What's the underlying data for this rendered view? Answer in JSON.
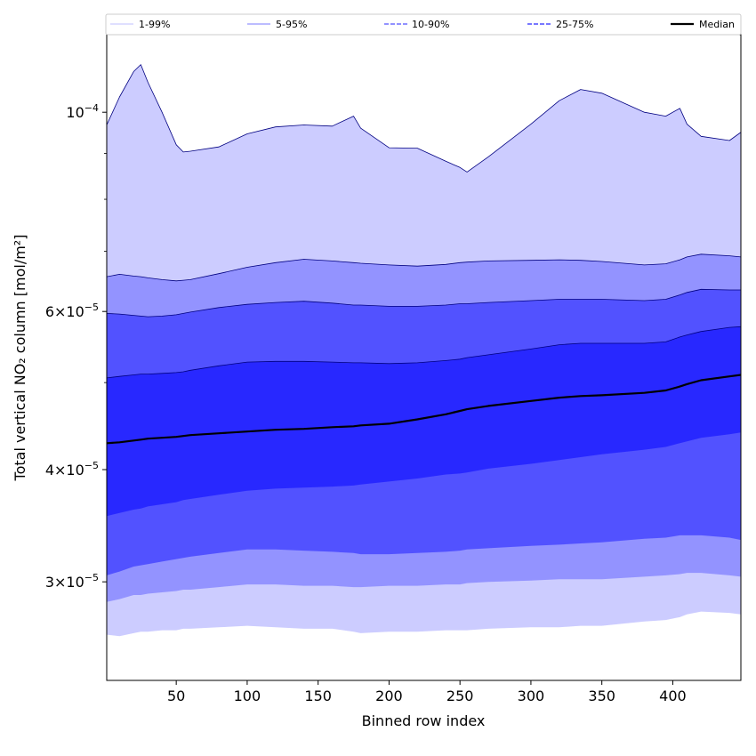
{
  "chart_data": {
    "type": "area",
    "title": "",
    "xlabel": "Binned row index",
    "ylabel": "Total vertical NO₂ column [mol/m²]",
    "yscale": "log",
    "xlim": [
      1,
      448
    ],
    "ylim": [
      2.33e-05,
      0.000122
    ],
    "xticks": [
      50,
      100,
      150,
      200,
      250,
      300,
      350,
      400
    ],
    "xtick_labels": [
      "50",
      "100",
      "150",
      "200",
      "250",
      "300",
      "350",
      "400"
    ],
    "yticks": [
      3e-05,
      4e-05,
      6e-05,
      0.0001
    ],
    "ytick_mantissa": [
      "3",
      "4",
      "6",
      ""
    ],
    "ytick_base": [
      "×10",
      "×10",
      "×10",
      "10"
    ],
    "ytick_exponent": [
      "−5",
      "−5",
      "−5",
      "−4"
    ],
    "minor_yticks": [
      5e-05,
      7e-05,
      8e-05,
      9e-05
    ],
    "x": [
      1,
      10,
      20,
      25,
      30,
      40,
      50,
      55,
      60,
      80,
      100,
      120,
      140,
      160,
      175,
      180,
      200,
      220,
      240,
      250,
      255,
      270,
      300,
      320,
      335,
      350,
      380,
      395,
      405,
      410,
      420,
      440,
      448
    ],
    "series": [
      {
        "name": "p1",
        "values": [
          2.62e-05,
          2.61e-05,
          2.63e-05,
          2.64e-05,
          2.64e-05,
          2.65e-05,
          2.65e-05,
          2.66e-05,
          2.66e-05,
          2.67e-05,
          2.68e-05,
          2.67e-05,
          2.66e-05,
          2.66e-05,
          2.64e-05,
          2.63e-05,
          2.64e-05,
          2.64e-05,
          2.65e-05,
          2.65e-05,
          2.65e-05,
          2.66e-05,
          2.67e-05,
          2.67e-05,
          2.68e-05,
          2.68e-05,
          2.71e-05,
          2.72e-05,
          2.74e-05,
          2.76e-05,
          2.78e-05,
          2.77e-05,
          2.76e-05
        ]
      },
      {
        "name": "p5",
        "values": [
          2.85e-05,
          2.87e-05,
          2.9e-05,
          2.9e-05,
          2.91e-05,
          2.92e-05,
          2.93e-05,
          2.94e-05,
          2.94e-05,
          2.96e-05,
          2.98e-05,
          2.98e-05,
          2.97e-05,
          2.97e-05,
          2.96e-05,
          2.96e-05,
          2.97e-05,
          2.97e-05,
          2.98e-05,
          2.98e-05,
          2.99e-05,
          3e-05,
          3.01e-05,
          3.02e-05,
          3.02e-05,
          3.02e-05,
          3.04e-05,
          3.05e-05,
          3.06e-05,
          3.07e-05,
          3.07e-05,
          3.05e-05,
          3.04e-05
        ]
      },
      {
        "name": "p10",
        "values": [
          3.05e-05,
          3.08e-05,
          3.12e-05,
          3.13e-05,
          3.14e-05,
          3.16e-05,
          3.18e-05,
          3.19e-05,
          3.2e-05,
          3.23e-05,
          3.26e-05,
          3.26e-05,
          3.25e-05,
          3.24e-05,
          3.23e-05,
          3.22e-05,
          3.22e-05,
          3.23e-05,
          3.24e-05,
          3.25e-05,
          3.26e-05,
          3.27e-05,
          3.29e-05,
          3.3e-05,
          3.31e-05,
          3.32e-05,
          3.35e-05,
          3.36e-05,
          3.38e-05,
          3.38e-05,
          3.38e-05,
          3.36e-05,
          3.34e-05
        ]
      },
      {
        "name": "p25",
        "values": [
          3.55e-05,
          3.58e-05,
          3.61e-05,
          3.62e-05,
          3.64e-05,
          3.66e-05,
          3.68e-05,
          3.7e-05,
          3.71e-05,
          3.75e-05,
          3.79e-05,
          3.81e-05,
          3.82e-05,
          3.83e-05,
          3.84e-05,
          3.85e-05,
          3.88e-05,
          3.91e-05,
          3.95e-05,
          3.96e-05,
          3.97e-05,
          4.01e-05,
          4.06e-05,
          4.1e-05,
          4.13e-05,
          4.16e-05,
          4.21e-05,
          4.24e-05,
          4.28e-05,
          4.3e-05,
          4.34e-05,
          4.38e-05,
          4.4e-05
        ]
      },
      {
        "name": "median",
        "values": [
          4.28e-05,
          4.29e-05,
          4.31e-05,
          4.32e-05,
          4.33e-05,
          4.34e-05,
          4.35e-05,
          4.36e-05,
          4.37e-05,
          4.39e-05,
          4.41e-05,
          4.43e-05,
          4.44e-05,
          4.46e-05,
          4.47e-05,
          4.48e-05,
          4.5e-05,
          4.55e-05,
          4.61e-05,
          4.65e-05,
          4.67e-05,
          4.71e-05,
          4.77e-05,
          4.81e-05,
          4.83e-05,
          4.84e-05,
          4.87e-05,
          4.9e-05,
          4.95e-05,
          4.98e-05,
          5.03e-05,
          5.08e-05,
          5.1e-05
        ]
      },
      {
        "name": "p75",
        "values": [
          5.06e-05,
          5.08e-05,
          5.1e-05,
          5.11e-05,
          5.11e-05,
          5.12e-05,
          5.13e-05,
          5.14e-05,
          5.16e-05,
          5.22e-05,
          5.27e-05,
          5.28e-05,
          5.28e-05,
          5.27e-05,
          5.26e-05,
          5.26e-05,
          5.25e-05,
          5.26e-05,
          5.29e-05,
          5.31e-05,
          5.33e-05,
          5.37e-05,
          5.45e-05,
          5.51e-05,
          5.53e-05,
          5.53e-05,
          5.53e-05,
          5.55e-05,
          5.62e-05,
          5.65e-05,
          5.7e-05,
          5.76e-05,
          5.77e-05
        ]
      },
      {
        "name": "p90",
        "values": [
          5.97e-05,
          5.96e-05,
          5.94e-05,
          5.93e-05,
          5.92e-05,
          5.93e-05,
          5.95e-05,
          5.97e-05,
          5.99e-05,
          6.06e-05,
          6.11e-05,
          6.14e-05,
          6.16e-05,
          6.13e-05,
          6.1e-05,
          6.1e-05,
          6.08e-05,
          6.08e-05,
          6.1e-05,
          6.12e-05,
          6.12e-05,
          6.14e-05,
          6.17e-05,
          6.19e-05,
          6.19e-05,
          6.19e-05,
          6.17e-05,
          6.19e-05,
          6.26e-05,
          6.3e-05,
          6.35e-05,
          6.34e-05,
          6.34e-05
        ]
      },
      {
        "name": "p95",
        "values": [
          6.56e-05,
          6.6e-05,
          6.57e-05,
          6.56e-05,
          6.54e-05,
          6.51e-05,
          6.49e-05,
          6.5e-05,
          6.51e-05,
          6.61e-05,
          6.72e-05,
          6.8e-05,
          6.86e-05,
          6.83e-05,
          6.8e-05,
          6.79e-05,
          6.76e-05,
          6.74e-05,
          6.77e-05,
          6.8e-05,
          6.81e-05,
          6.83e-05,
          6.84e-05,
          6.85e-05,
          6.84e-05,
          6.82e-05,
          6.76e-05,
          6.78e-05,
          6.85e-05,
          6.9e-05,
          6.95e-05,
          6.92e-05,
          6.9e-05
        ]
      },
      {
        "name": "p99",
        "values": [
          9.68e-05,
          0.000104,
          0.000111,
          0.000113,
          0.000108,
          0.0001,
          9.2e-05,
          9.03e-05,
          9.05e-05,
          9.15e-05,
          9.46e-05,
          9.63e-05,
          9.68e-05,
          9.65e-05,
          9.9e-05,
          9.6e-05,
          9.13e-05,
          9.12e-05,
          8.82e-05,
          8.68e-05,
          8.58e-05,
          8.92e-05,
          9.7e-05,
          0.000103,
          0.000106,
          0.000105,
          0.0001,
          9.9e-05,
          0.000101,
          9.7e-05,
          9.4e-05,
          9.3e-05,
          9.5e-05
        ]
      }
    ],
    "bands": [
      {
        "lower": "p1",
        "upper": "p99",
        "color": "#ccccff"
      },
      {
        "lower": "p5",
        "upper": "p95",
        "color": "#9393ff"
      },
      {
        "lower": "p10",
        "upper": "p90",
        "color": "#5252ff"
      },
      {
        "lower": "p25",
        "upper": "p75",
        "color": "#2828ff"
      }
    ],
    "band_edges": [
      "p99",
      "p95",
      "p90",
      "p75"
    ],
    "legend": {
      "position": "top",
      "entries": [
        {
          "label": "1-99%",
          "color": "#ccccff",
          "style": "solid"
        },
        {
          "label": "5-95%",
          "color": "#9393ff",
          "style": "solid"
        },
        {
          "label": "10-90%",
          "color": "#5252ff",
          "style": "dashed"
        },
        {
          "label": "25-75%",
          "color": "#2828ff",
          "style": "dashed"
        },
        {
          "label": "Median",
          "color": "#000000",
          "style": "solid-thick"
        }
      ]
    },
    "colors": {
      "edge": "#000080",
      "median": "#000000",
      "axis": "#000000"
    }
  }
}
